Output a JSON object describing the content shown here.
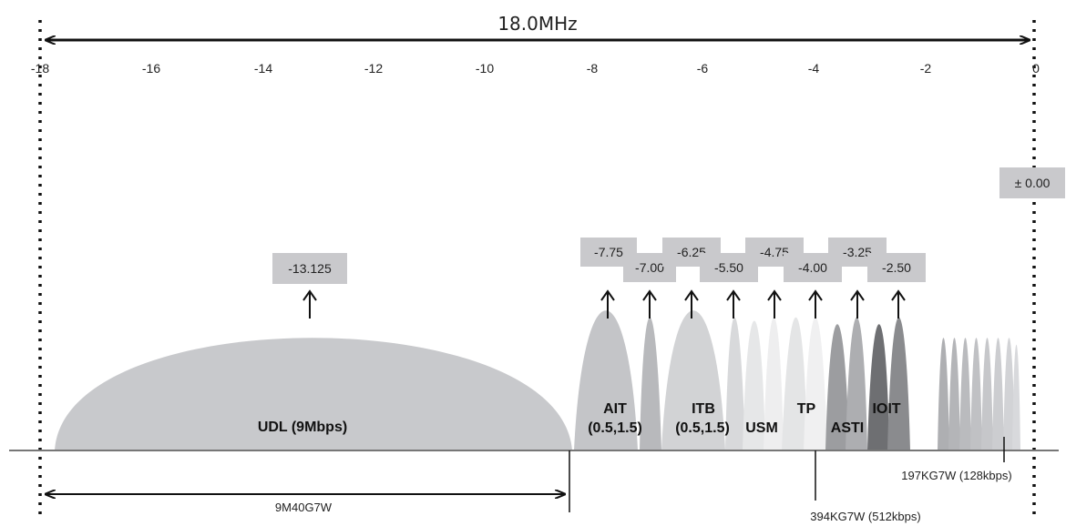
{
  "diagram": {
    "title": "18.0MHz",
    "axis_ticks": [
      "-18",
      "-16",
      "-14",
      "-12",
      "-10",
      "-8",
      "-6",
      "-4",
      "-2",
      "0"
    ],
    "markers": {
      "m13125": "-13.125",
      "m775": "-7.75",
      "m700": "-7.00",
      "m625": "-6.25",
      "m550": "-5.50",
      "m475": "-4.75",
      "m400": "-4.00",
      "m325": "-3.25",
      "m250": "-2.50",
      "m000": "± 0.00"
    },
    "labels": {
      "udl": "UDL (9Mbps)",
      "ait_name": "AIT",
      "ait_params": "(0.5,1.5)",
      "itb_name": "ITB",
      "itb_params": "(0.5,1.5)",
      "usm": "USM",
      "tp": "TP",
      "asti": "ASTI",
      "ioit": "IOIT"
    },
    "bandwidth_label": "9M40G7W",
    "emission_394": "394KG7W (512kbps)",
    "emission_197": "197KG7W (128kbps)"
  }
}
